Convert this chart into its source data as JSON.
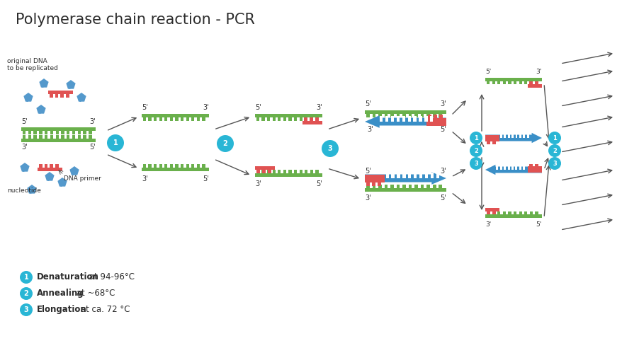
{
  "title": "Polymerase chain reaction - PCR",
  "bg_color": "#ffffff",
  "green_color": "#6ab04c",
  "red_color": "#e05252",
  "blue_arrow_color": "#3a8fc7",
  "cyan_color": "#29b6d5",
  "dark_color": "#2c2c2c",
  "arrow_color": "#555555",
  "legend": [
    {
      "num": "1",
      "bold": "Denaturation",
      "rest": " at 94-96°C"
    },
    {
      "num": "2",
      "bold": "Annealing",
      "rest": " at ~68°C"
    },
    {
      "num": "3",
      "bold": "Elongation",
      "rest": " at ca. 72 °C"
    }
  ]
}
